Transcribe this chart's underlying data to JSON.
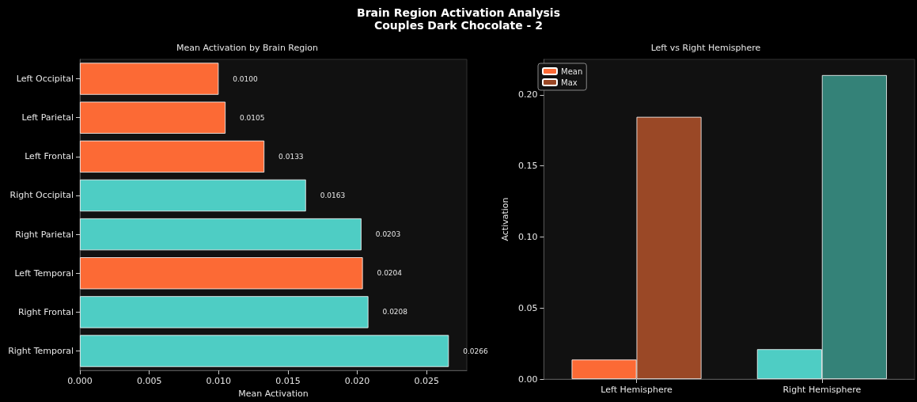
{
  "chart_data": [
    {
      "type": "bar",
      "orientation": "horizontal",
      "title": "Brain Region Activation Analysis",
      "subtitle": "Couples Dark Chocolate - 2",
      "annotations": [
        "Mean Activation by Brain Region"
      ],
      "xlabel": "Mean Activation",
      "categories": [
        "Left Occipital",
        "Left Parietal",
        "Left Frontal",
        "Right Occipital",
        "Right Parietal",
        "Left Temporal",
        "Right Frontal",
        "Right Temporal"
      ],
      "values": [
        0.01,
        0.0105,
        0.0133,
        0.0163,
        0.0203,
        0.0204,
        0.0208,
        0.0266
      ],
      "value_labels": [
        "0.0100",
        "0.0105",
        "0.0133",
        "0.0163",
        "0.0203",
        "0.0204",
        "0.0208",
        "0.0266"
      ],
      "colors": [
        "#fc6a35",
        "#fc6a35",
        "#fc6a35",
        "#4ecdc4",
        "#4ecdc4",
        "#fc6a35",
        "#4ecdc4",
        "#4ecdc4"
      ],
      "xlim": [
        0,
        0.0279
      ],
      "xticks": [
        {
          "value": 0,
          "label": "0.000"
        },
        {
          "value": 0.005,
          "label": "0.005"
        },
        {
          "value": 0.01,
          "label": "0.010"
        },
        {
          "value": 0.015,
          "label": "0.015"
        },
        {
          "value": 0.02,
          "label": "0.020"
        },
        {
          "value": 0.025,
          "label": "0.025"
        }
      ],
      "grid": false,
      "legend": false
    },
    {
      "type": "bar",
      "title": "Left vs Right Hemisphere",
      "ylabel": "Activation",
      "categories": [
        "Left Hemisphere",
        "Right Hemisphere"
      ],
      "series": [
        {
          "name": "Mean",
          "colors": [
            "#fc6a35",
            "#4ecdc4"
          ],
          "values": [
            0.0137,
            0.021
          ]
        },
        {
          "name": "Max",
          "colors": [
            "#9a4826",
            "#348278"
          ],
          "values": [
            0.1845,
            0.2139
          ]
        }
      ],
      "ylim": [
        0,
        0.225
      ],
      "yticks": [
        {
          "value": 0,
          "label": "0.00"
        },
        {
          "value": 0.05,
          "label": "0.05"
        },
        {
          "value": 0.1,
          "label": "0.10"
        },
        {
          "value": 0.15,
          "label": "0.15"
        },
        {
          "value": 0.2,
          "label": "0.20"
        }
      ],
      "grid": false,
      "legend": "top left"
    }
  ]
}
